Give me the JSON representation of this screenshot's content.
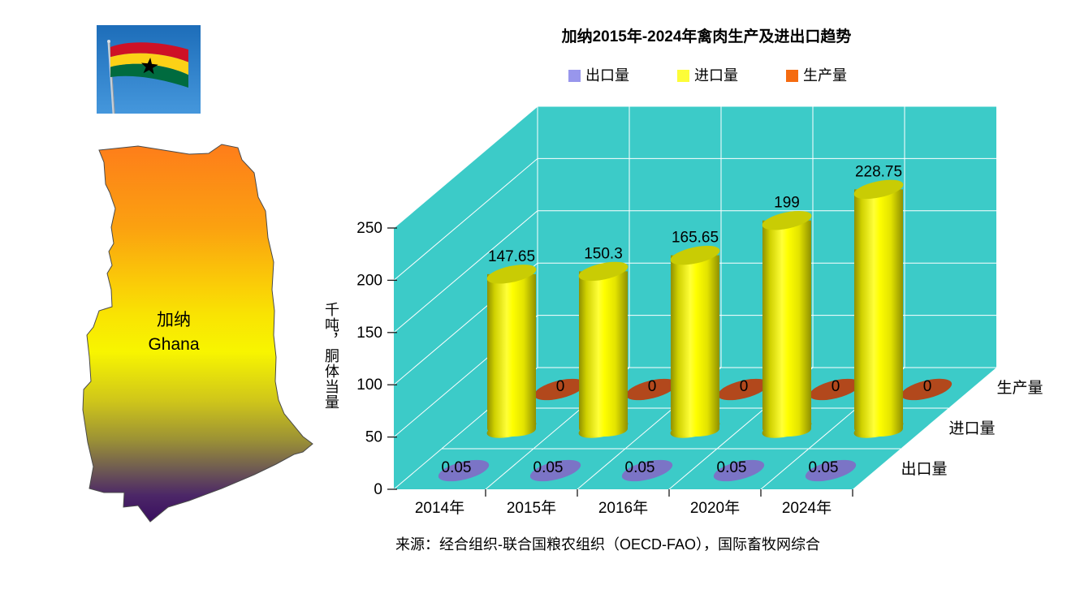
{
  "title": "加纳2015年-2024年禽肉生产及进出口趋势",
  "source": "来源：经合组织-联合国粮农组织（OECD-FAO），国际畜牧网综合",
  "map": {
    "label_zh": "加纳",
    "label_en": "Ghana"
  },
  "flag": {
    "red": "#CE1126",
    "gold": "#FCD116",
    "green": "#006B3F",
    "star": "#000000",
    "sky_top": "#1D6DB9",
    "sky_bottom": "#4597DC"
  },
  "chart_data": {
    "type": "bar",
    "style3d": "cylinder",
    "categories": [
      "2014年",
      "2015年",
      "2016年",
      "2020年",
      "2024年"
    ],
    "series": [
      {
        "name": "出口量",
        "shape": "ellipse",
        "values": [
          0.05,
          0.05,
          0.05,
          0.05,
          0.05
        ],
        "labels": [
          "0.05",
          "0.05",
          "0.05",
          "0.05",
          "0.05"
        ],
        "color": "#7B74C6",
        "legend_color": "#9896EC"
      },
      {
        "name": "进口量",
        "shape": "cylinder",
        "values": [
          147.65,
          150.3,
          165.65,
          199,
          228.75
        ],
        "labels": [
          "147.65",
          "150.3",
          "165.65",
          "199",
          "228.75"
        ],
        "color": "#FFFF00",
        "legend_color": "#FDFD38"
      },
      {
        "name": "生产量",
        "shape": "ellipse",
        "values": [
          0,
          0,
          0,
          0,
          0
        ],
        "labels": [
          "0",
          "0",
          "0",
          "0",
          "0"
        ],
        "color": "#B2481C",
        "legend_color": "#F56B10"
      }
    ],
    "ylabel": "千吨，胴体当量",
    "ylim": [
      0,
      250
    ],
    "ytick_interval": 50,
    "yticks": [
      "0",
      "50",
      "100",
      "150",
      "200",
      "250"
    ],
    "wall_color": "#3CCBC8",
    "grid_color": "#FFFFFF",
    "legend_position": "top",
    "data_labels": true
  }
}
